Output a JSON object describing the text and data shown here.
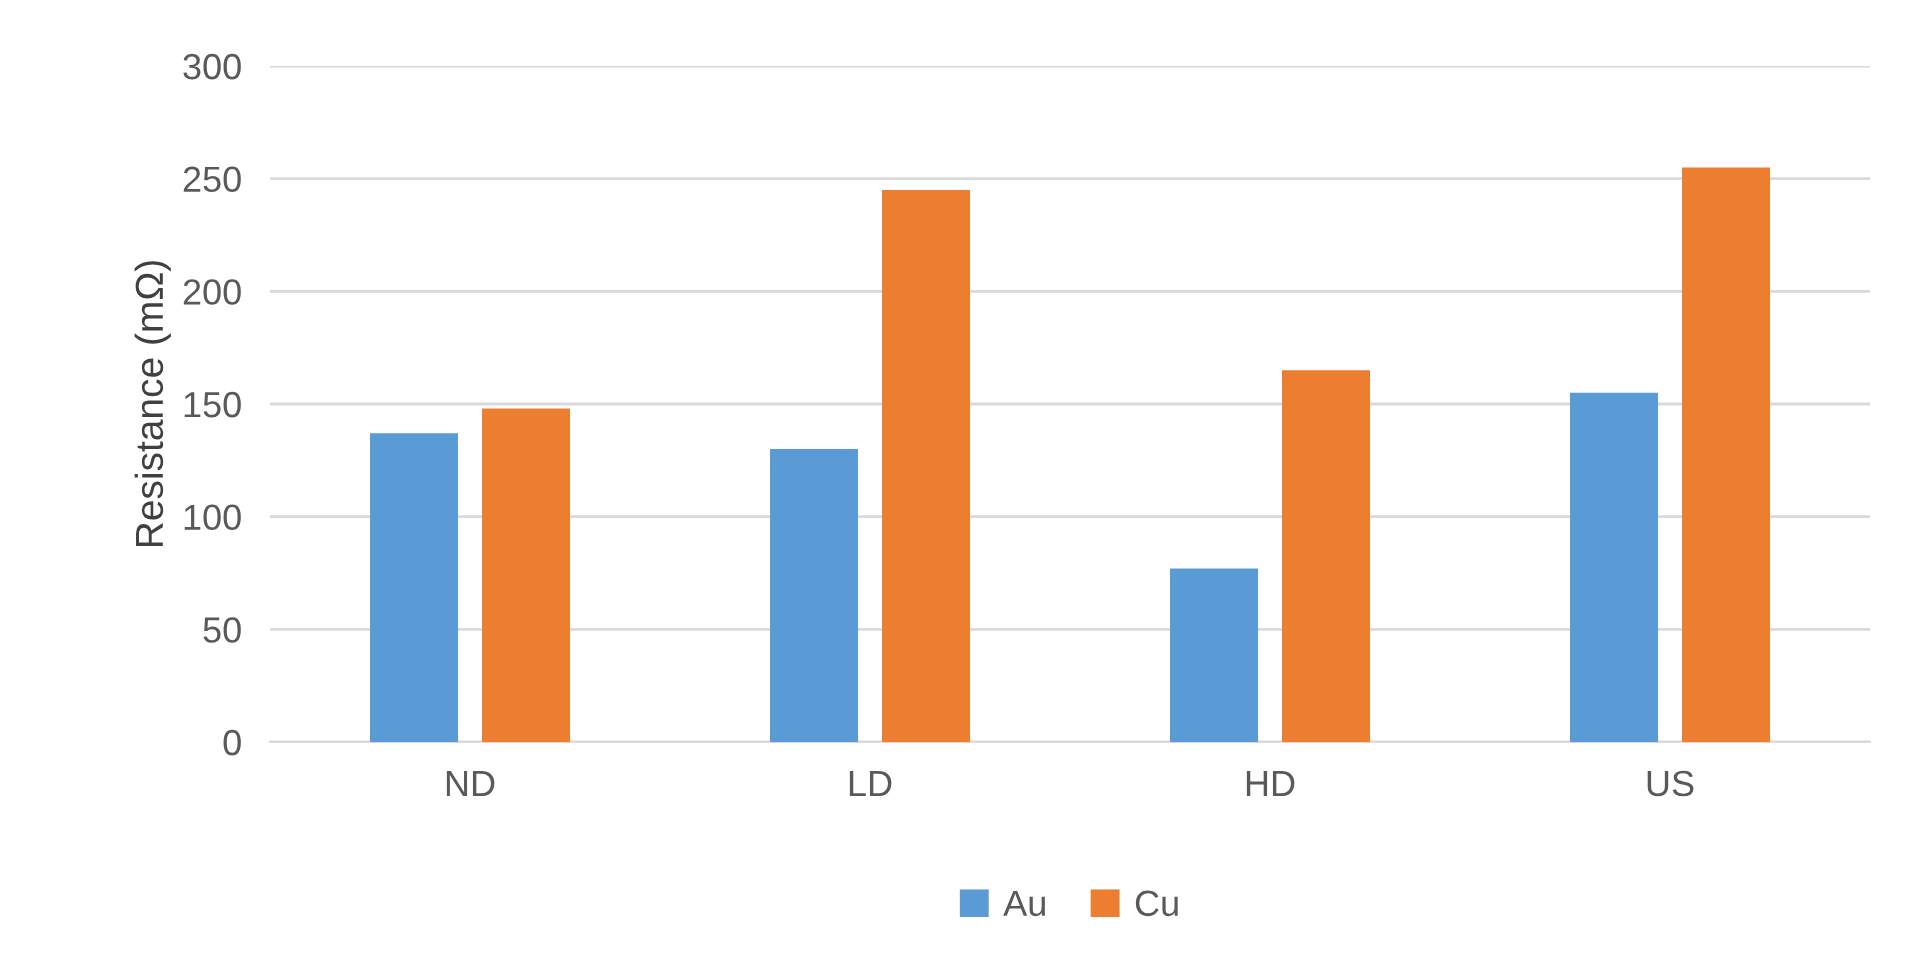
{
  "chart_data": {
    "type": "bar",
    "ylabel": "Resistance (mΩ)",
    "categories": [
      "ND",
      "LD",
      "HD",
      "US"
    ],
    "series": [
      {
        "name": "Au",
        "color": "#5b9bd5",
        "values": [
          137,
          130,
          77,
          155
        ]
      },
      {
        "name": "Cu",
        "color": "#ed7d31",
        "values": [
          148,
          245,
          165,
          255
        ]
      }
    ],
    "ylim": [
      0,
      300
    ],
    "yticks": [
      0,
      50,
      100,
      150,
      200,
      250,
      300
    ],
    "grid": "y",
    "legend": "bottom"
  }
}
